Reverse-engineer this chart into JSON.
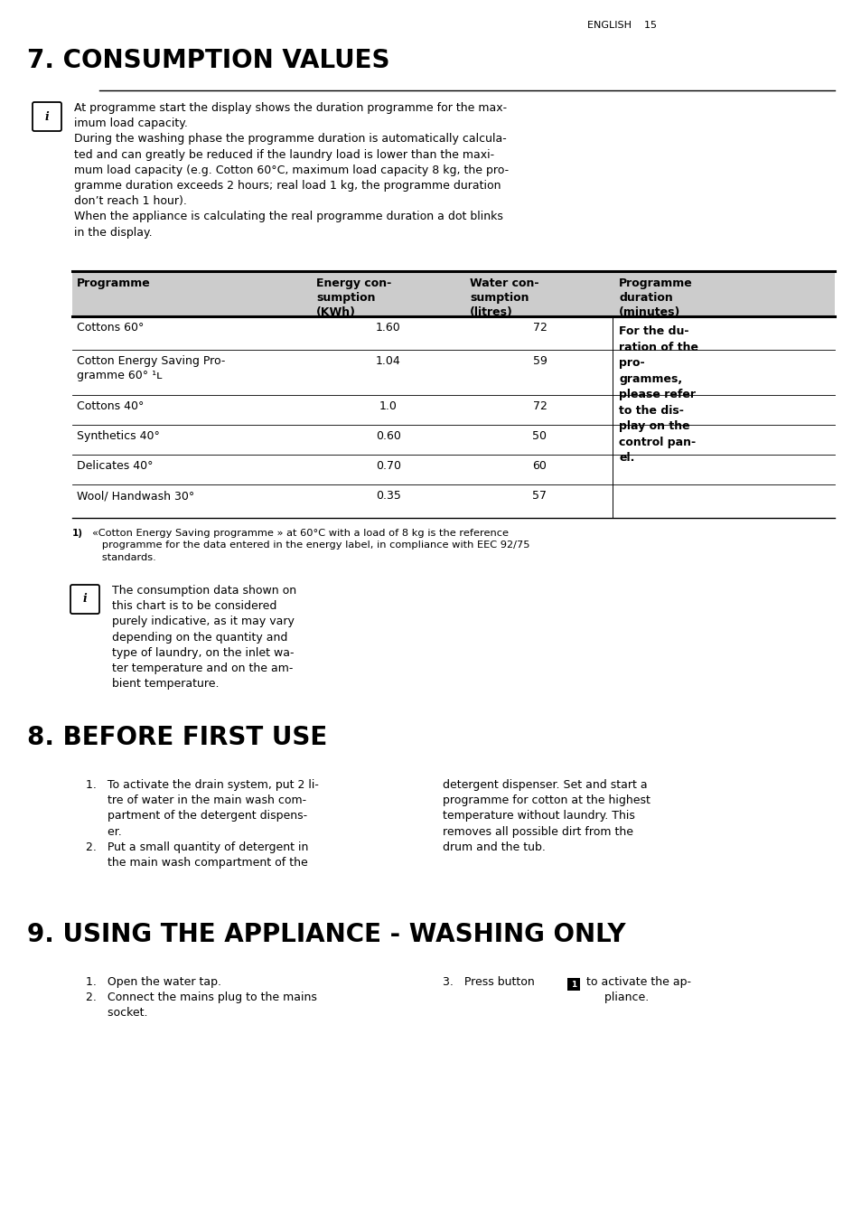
{
  "page_header": "ENGLISH    15",
  "section7_title": "7. CONSUMPTION VALUES",
  "info_box1_line1": "At programme start the display shows the duration programme for the max-",
  "info_box1_line2": "imum load capacity.",
  "info_box1_line3": "During the washing phase the programme duration is automatically calcula-",
  "info_box1_line4": "ted and can greatly be reduced if the laundry load is lower than the maxi-",
  "info_box1_line5": "mum load capacity (e.g. Cotton 60°C, maximum load capacity 8 kg, the pro-",
  "info_box1_line6": "gramme duration exceeds 2 hours; real load 1 kg, the programme duration",
  "info_box1_line7": "don’t reach 1 hour).",
  "info_box1_line8": "When the appliance is calculating the real programme duration a dot blinks",
  "info_box1_line9": "in the display.",
  "col_headers": [
    "Programme",
    "Energy con-\nsumption\n(KWh)",
    "Water con-\nsumption\n(litres)",
    "Programme\nduration\n(minutes)"
  ],
  "rows": [
    {
      "prog": "Cottons 60°",
      "energy": "1.60",
      "water": "72"
    },
    {
      "prog": "Cotton Energy Saving Pro-\ngramme 60° ¹ʟ",
      "energy": "1.04",
      "water": "59"
    },
    {
      "prog": "Cottons 40°",
      "energy": "1.0",
      "water": "72"
    },
    {
      "prog": "Synthetics 40°",
      "energy": "0.60",
      "water": "50"
    },
    {
      "prog": "Delicates 40°",
      "energy": "0.70",
      "water": "60"
    },
    {
      "prog": "Wool/ Handwash 30°",
      "energy": "0.35",
      "water": "57"
    }
  ],
  "duration_note_lines": [
    "For the du-",
    "ration of the",
    "pro-",
    "grammes,",
    "please refer",
    "to the dis-",
    "play on the",
    "control pan-",
    "el."
  ],
  "duration_note_bold_lines": [
    false,
    false,
    false,
    false,
    true,
    false,
    false,
    true,
    false
  ],
  "footnote": "¹ʟ «Cotton Energy Saving programme » at 60°C with a load of 8 kg is the reference\n   programme for the data entered in the energy label, in compliance with EEC 92/75\n   standards.",
  "info_box2_lines": [
    "The consumption data shown on",
    "this chart is to be considered",
    "purely indicative, as it may vary",
    "depending on the quantity and",
    "type of laundry, on the inlet wa-",
    "ter temperature and on the am-",
    "bient temperature."
  ],
  "section8_title": "8. BEFORE FIRST USE",
  "s8_left": [
    "1.   To activate the drain system, put 2 li-",
    "      tre of water in the main wash com-",
    "      partment of the detergent dispens-",
    "      er.",
    "2.   Put a small quantity of detergent in",
    "      the main wash compartment of the"
  ],
  "s8_right": [
    "detergent dispenser. Set and start a",
    "programme for cotton at the highest",
    "temperature without laundry. This",
    "removes all possible dirt from the",
    "drum and the tub."
  ],
  "section9_title": "9. USING THE APPLIANCE - WASHING ONLY",
  "s9_left": [
    "1.   Open the water tap.",
    "2.   Connect the mains plug to the mains",
    "      socket."
  ],
  "s9_right_pre": "3.   Press button ",
  "s9_right_post": " to activate the ap-\n      pliance.",
  "bg_color": "#ffffff",
  "text_color": "#000000",
  "header_bg": "#cccccc"
}
